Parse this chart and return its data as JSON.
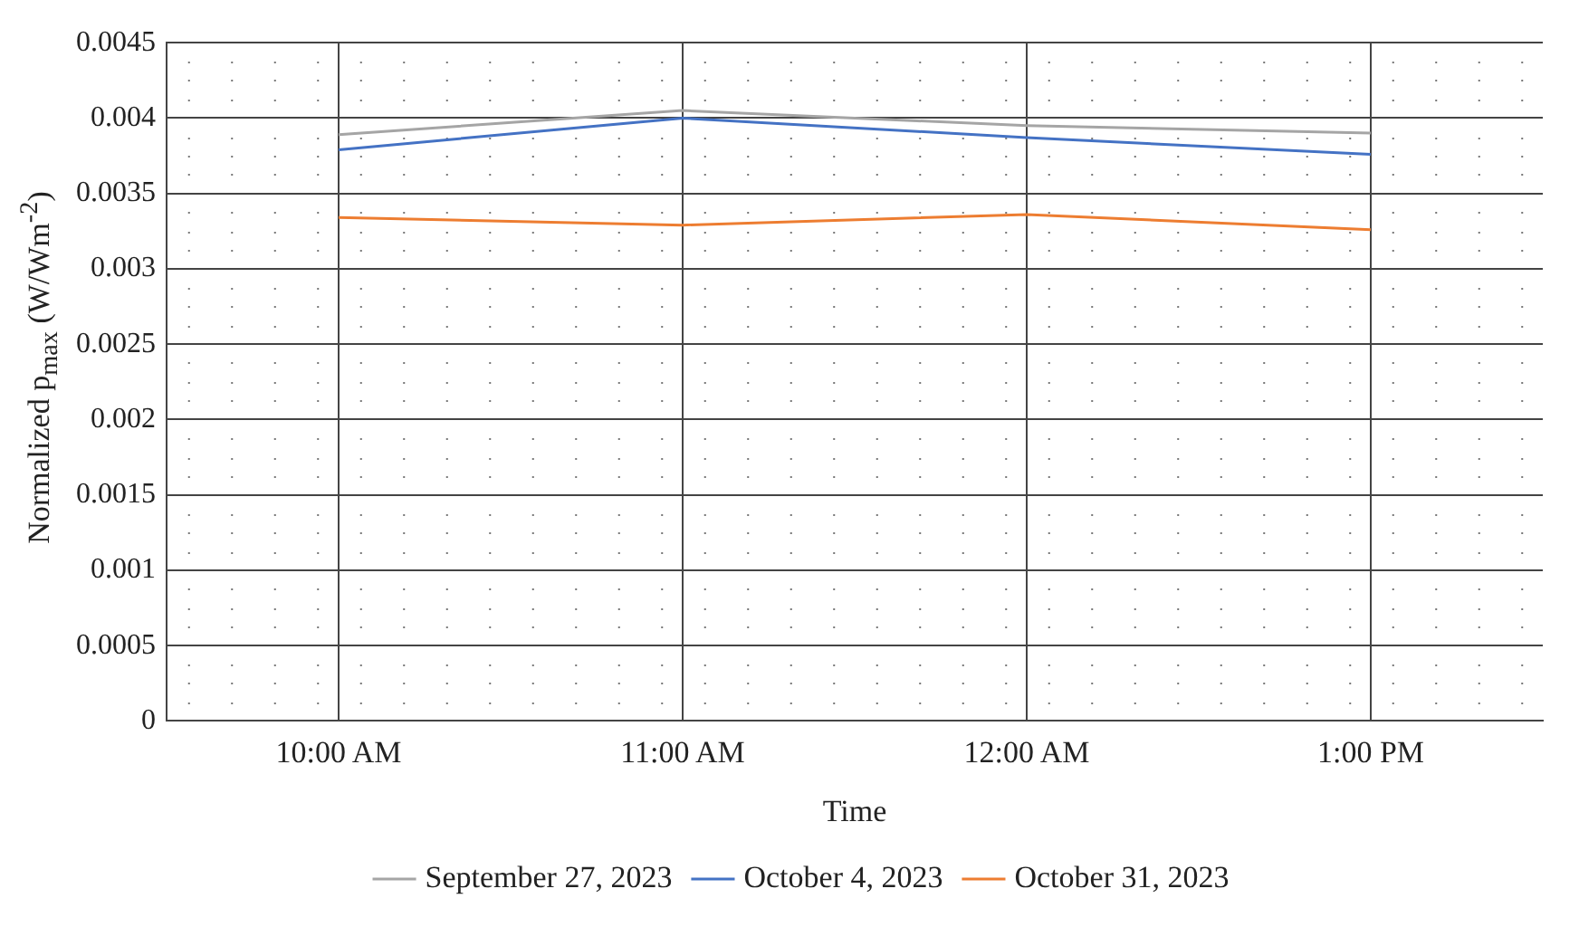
{
  "chart_data": {
    "type": "line",
    "xlabel": "Time",
    "ylabel": "Normalized p$_{max}$ (W/Wm$^{-2}$)",
    "categories": [
      "10:00 AM",
      "11:00 AM",
      "12:00 AM",
      "1:00 PM"
    ],
    "series": [
      {
        "name": "September 27, 2023",
        "color": "#a5a5a5",
        "values": [
          0.00389,
          0.00405,
          0.00395,
          0.0039
        ]
      },
      {
        "name": "October 4, 2023",
        "color": "#4472c4",
        "values": [
          0.00379,
          0.004,
          0.00387,
          0.00376
        ]
      },
      {
        "name": "October 31, 2023",
        "color": "#ed7d31",
        "values": [
          0.00334,
          0.00329,
          0.00336,
          0.00326
        ]
      }
    ],
    "ylim": [
      0,
      0.0045
    ],
    "yticks": [
      0,
      0.0005,
      0.001,
      0.0015,
      0.002,
      0.0025,
      0.003,
      0.0035,
      0.004,
      0.0045
    ],
    "grid": true,
    "legend": "bottom",
    "line_style": "solid"
  }
}
